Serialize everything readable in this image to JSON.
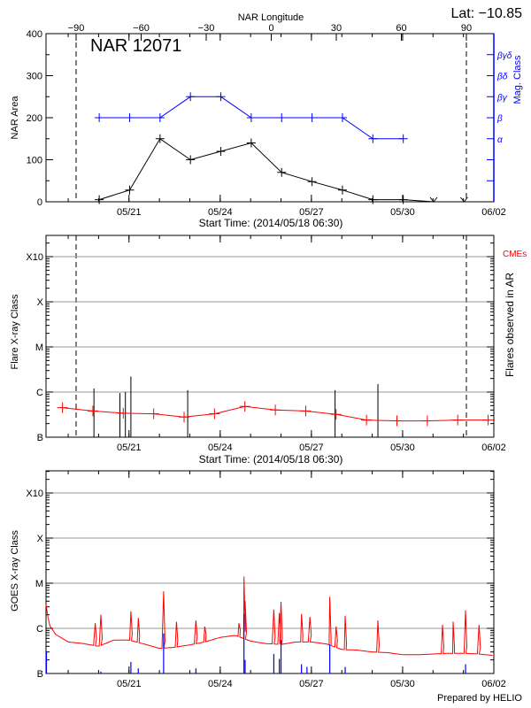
{
  "colors": {
    "area": "#000000",
    "mag_class": "#0000ff",
    "cme": "#ff0000",
    "goes_long": "#ff0000",
    "goes_short": "#0000ff",
    "grid": "#999999"
  },
  "header": {
    "lat_label": "Lat: −10.85",
    "lon_axis_title": "NAR Longitude",
    "region_label": "NAR 12071",
    "prepared_by": "Prepared by HELIO"
  },
  "chart_data": [
    {
      "type": "line",
      "title": "NAR 12071",
      "xlabel": "Start Time: (2014/05/18 06:30)",
      "ylabel": "NAR Area",
      "y2label": "Mag. Class",
      "x2label": "NAR Longitude",
      "xlim": [
        "2014-05-18T06:30",
        "2014-06-02T00:00"
      ],
      "ylim": [
        0,
        400
      ],
      "x_ticks": [
        "05/21",
        "05/24",
        "05/27",
        "05/30",
        "06/02"
      ],
      "y_ticks": [
        "0",
        "100",
        "200",
        "300",
        "400"
      ],
      "x2_ticks": [
        "-90",
        "-60",
        "-30",
        "0",
        "30",
        "60",
        "90"
      ],
      "y2_ticks": [
        "α",
        "β",
        "βγ",
        "βδ",
        "βγδ"
      ],
      "limb_longitudes": [
        -90,
        90
      ],
      "series": [
        {
          "id": "area",
          "x": [
            "2014-05-20T00:30",
            "2014-05-21T00:30",
            "2014-05-22T00:30",
            "2014-05-23T00:30",
            "2014-05-24T00:30",
            "2014-05-25T00:30",
            "2014-05-26T00:30",
            "2014-05-27T00:30",
            "2014-05-28T00:30",
            "2014-05-29T00:30",
            "2014-05-30T00:30",
            "2014-05-31T00:30",
            "2014-06-01T00:30"
          ],
          "values": [
            5,
            28,
            150,
            100,
            120,
            140,
            70,
            48,
            28,
            5,
            5,
            0,
            0
          ]
        },
        {
          "id": "mag_class",
          "x": [
            "2014-05-20T00:30",
            "2014-05-21T00:30",
            "2014-05-22T00:30",
            "2014-05-23T00:30",
            "2014-05-24T00:30",
            "2014-05-25T00:30",
            "2014-05-26T00:30",
            "2014-05-27T00:30",
            "2014-05-28T00:30",
            "2014-05-29T00:30",
            "2014-05-30T00:30"
          ],
          "values": [
            "β",
            "β",
            "β",
            "βγ",
            "βγ",
            "β",
            "β",
            "β",
            "β",
            "α",
            "α"
          ]
        }
      ]
    },
    {
      "type": "bar",
      "xlabel": "Start Time: (2014/05/18 06:30)",
      "ylabel": "Flare X-ray Class",
      "y2label": "Flares observed in AR",
      "legend": "CMEs",
      "y_scale": "log",
      "xlim": [
        "2014-05-18T06:30",
        "2014-06-02T00:00"
      ],
      "x_ticks": [
        "05/21",
        "05/24",
        "05/27",
        "05/30",
        "06/02"
      ],
      "y_ticks": [
        "B",
        "C",
        "M",
        "X",
        "X10"
      ],
      "grid": true,
      "flares": {
        "x": [
          "2014-05-19T20:20",
          "2014-05-20T16:50",
          "2014-05-20T21:10",
          "2014-05-21T01:30",
          "2014-05-22T22:20",
          "2014-05-27T18:40",
          "2014-05-29T04:30"
        ],
        "values": [
          "C1.2",
          "B9.5",
          "C1.0",
          "C2.2",
          "C1.1",
          "C1.1",
          "C1.5"
        ]
      },
      "cmes": {
        "x": [
          "2014-05-18T19:30",
          "2014-05-19T19:30",
          "2014-05-20T19:30",
          "2014-05-21T19:30",
          "2014-05-22T19:30",
          "2014-05-23T19:30",
          "2014-05-24T19:30",
          "2014-05-25T19:30",
          "2014-05-26T19:30",
          "2014-05-27T19:30",
          "2014-05-28T19:30",
          "2014-05-29T19:30",
          "2014-05-30T19:30",
          "2014-05-31T19:30",
          "2014-06-01T19:30"
        ],
        "values": [
          "B4.5",
          "B3.8",
          "B3.4",
          "B3.3",
          "B2.8",
          "B3.3",
          "B4.8",
          "B4.0",
          "B3.8",
          "B3.2",
          "B2.4",
          "B2.3",
          "B2.3",
          "B2.4",
          "B2.4"
        ]
      }
    },
    {
      "type": "line",
      "ylabel": "GOES X-ray Class",
      "y_scale": "log",
      "xlim": [
        "2014-05-18T06:30",
        "2014-06-02T00:00"
      ],
      "x_ticks": [
        "05/21",
        "05/24",
        "05/27",
        "05/30",
        "06/02"
      ],
      "y_ticks": [
        "B",
        "C",
        "M",
        "X",
        "X10"
      ],
      "grid": true,
      "series": [
        {
          "id": "goes_long_background",
          "x": [
            "2014-05-18T06:30",
            "2014-05-18T09:00",
            "2014-05-18T14:00",
            "2014-05-19T00:00",
            "2014-05-19T12:00",
            "2014-05-20T00:00",
            "2014-05-20T12:00",
            "2014-05-21T00:00",
            "2014-05-21T12:00",
            "2014-05-22T00:00",
            "2014-05-22T12:00",
            "2014-05-23T00:00",
            "2014-05-23T12:00",
            "2014-05-24T00:00",
            "2014-05-24T12:00",
            "2014-05-25T00:00",
            "2014-05-25T12:00",
            "2014-05-26T00:00",
            "2014-05-26T12:00",
            "2014-05-27T00:00",
            "2014-05-27T12:00",
            "2014-05-28T00:00",
            "2014-05-28T12:00",
            "2014-05-29T00:00",
            "2014-05-29T12:00",
            "2014-05-30T00:00",
            "2014-05-30T12:00",
            "2014-05-31T00:00",
            "2014-05-31T12:00",
            "2014-06-01T00:00",
            "2014-06-01T12:00",
            "2014-06-02T00:00"
          ],
          "values": [
            "C3.4",
            "C1.2",
            "B7.4",
            "B5.0",
            "B4.6",
            "B4.0",
            "B5.5",
            "B5.5",
            "B4.5",
            "B3.6",
            "B3.8",
            "B4.3",
            "B5.0",
            "B6.3",
            "B7.0",
            "B5.2",
            "B4.6",
            "B4.4",
            "B5.0",
            "B5.0",
            "B4.5",
            "B3.4",
            "B3.3",
            "B3.0",
            "B2.9",
            "B2.6",
            "B2.6",
            "B2.7",
            "B2.8",
            "B2.8",
            "B2.7",
            "B2.5"
          ]
        },
        {
          "id": "goes_long_peaks",
          "x": [
            "2014-05-19T21:20",
            "2014-05-20T01:50",
            "2014-05-21T01:30",
            "2014-05-21T07:20",
            "2014-05-22T03:20",
            "2014-05-22T13:30",
            "2014-05-23T04:50",
            "2014-05-23T11:50",
            "2014-05-24T14:50",
            "2014-05-24T18:45",
            "2014-05-24T19:40",
            "2014-05-25T18:20",
            "2014-05-25T22:40",
            "2014-05-26T00:00",
            "2014-05-26T16:10",
            "2014-05-26T22:50",
            "2014-05-27T14:30",
            "2014-05-27T19:30",
            "2014-05-28T02:40",
            "2014-05-29T04:30",
            "2014-05-31T07:30",
            "2014-05-31T15:50",
            "2014-06-01T01:40",
            "2014-06-01T12:20"
          ],
          "values": [
            "C1.3",
            "C2.0",
            "C2.4",
            "C1.7",
            "C6.6",
            "C1.4",
            "C1.5",
            "C1.1",
            "C1.3",
            "M1.4",
            "C4.0",
            "C2.6",
            "C2.2",
            "C3.9",
            "C2.1",
            "C1.8",
            "C5.0",
            "C1.1",
            "C1.9",
            "C1.5",
            "C1.2",
            "C1.4",
            "C2.5",
            "C1.2"
          ]
        },
        {
          "id": "goes_short_peaks",
          "x": [
            "2014-05-18T06:50",
            "2014-05-20T01:50",
            "2014-05-21T01:30",
            "2014-05-21T07:20",
            "2014-05-22T03:20",
            "2014-05-23T04:50",
            "2014-05-24T18:45",
            "2014-05-24T19:40",
            "2014-05-25T18:20",
            "2014-05-25T22:40",
            "2014-05-26T00:00",
            "2014-05-26T16:10",
            "2014-05-26T20:30",
            "2014-05-27T14:30",
            "2014-05-28T02:40",
            "2014-06-01T01:40"
          ],
          "values": [
            "B3.0",
            "B1.1",
            "B1.8",
            "B1.3",
            "B7.7",
            "B1.3",
            "C2.1",
            "B2.0",
            "B2.7",
            "B2.1",
            "B5.5",
            "B1.6",
            "B1.4",
            "B4.4",
            "B1.4",
            "B1.6"
          ]
        }
      ]
    }
  ]
}
